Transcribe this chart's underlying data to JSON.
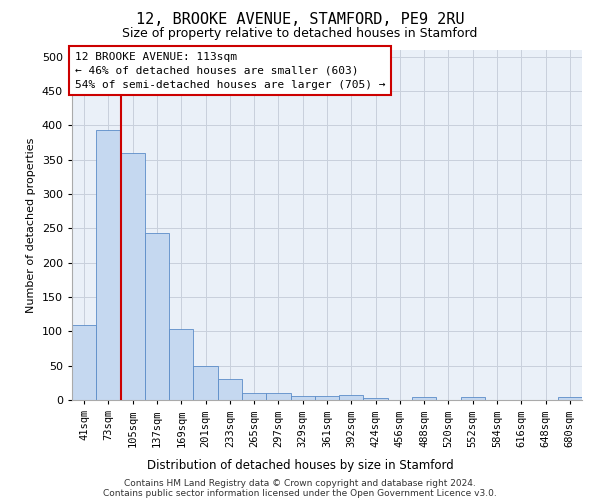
{
  "title_line1": "12, BROOKE AVENUE, STAMFORD, PE9 2RU",
  "title_line2": "Size of property relative to detached houses in Stamford",
  "xlabel": "Distribution of detached houses by size in Stamford",
  "ylabel": "Number of detached properties",
  "footnote1": "Contains HM Land Registry data © Crown copyright and database right 2024.",
  "footnote2": "Contains public sector information licensed under the Open Government Licence v3.0.",
  "categories": [
    "41sqm",
    "73sqm",
    "105sqm",
    "137sqm",
    "169sqm",
    "201sqm",
    "233sqm",
    "265sqm",
    "297sqm",
    "329sqm",
    "361sqm",
    "392sqm",
    "424sqm",
    "456sqm",
    "488sqm",
    "520sqm",
    "552sqm",
    "584sqm",
    "616sqm",
    "648sqm",
    "680sqm"
  ],
  "values": [
    110,
    393,
    360,
    243,
    104,
    50,
    30,
    10,
    10,
    6,
    6,
    7,
    3,
    0,
    4,
    0,
    4,
    0,
    0,
    0,
    4
  ],
  "bar_color": "#c5d8f0",
  "bar_edge_color": "#5b8cc8",
  "background_color": "#eaf0f8",
  "grid_color": "#c8d0dc",
  "annotation_text": "12 BROOKE AVENUE: 113sqm\n← 46% of detached houses are smaller (603)\n54% of semi-detached houses are larger (705) →",
  "annotation_box_color": "#ffffff",
  "annotation_box_edge_color": "#cc0000",
  "vline_color": "#cc0000",
  "vline_x": 1.5,
  "ylim": [
    0,
    510
  ],
  "yticks": [
    0,
    50,
    100,
    150,
    200,
    250,
    300,
    350,
    400,
    450,
    500
  ],
  "title_fontsize": 11,
  "subtitle_fontsize": 9,
  "ylabel_fontsize": 8,
  "xlabel_fontsize": 8.5,
  "tick_fontsize": 7.5,
  "annotation_fontsize": 8
}
